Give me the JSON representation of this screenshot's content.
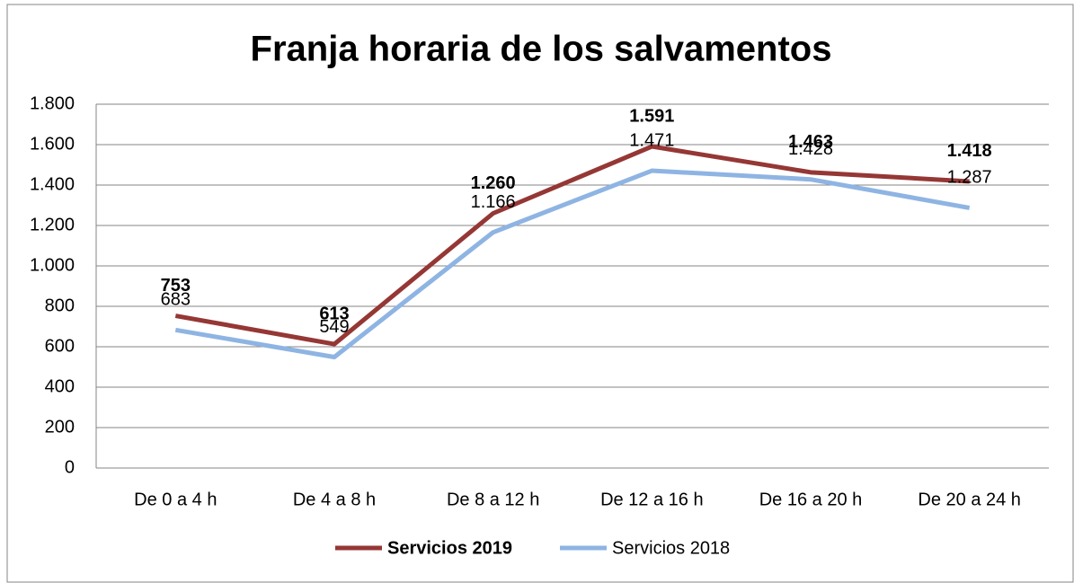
{
  "chart_data": {
    "type": "line",
    "title": "Franja horaria de los salvamentos",
    "categories": [
      "De 0 a 4 h",
      "De 4 a 8 h",
      "De 8 a 12 h",
      "De 12 a 16 h",
      "De 16 a 20 h",
      "De 20 a 24 h"
    ],
    "series": [
      {
        "name": "Servicios 2019",
        "color": "#953735",
        "values": [
          753,
          613,
          1260,
          1591,
          1463,
          1418
        ],
        "value_labels": [
          "753",
          "613",
          "1.260",
          "1.591",
          "1.463",
          "1.418"
        ]
      },
      {
        "name": "Servicios 2018",
        "color": "#8eb4e3",
        "values": [
          683,
          549,
          1166,
          1471,
          1428,
          1287
        ],
        "value_labels": [
          "683",
          "549",
          "1.166",
          "1.471",
          "1.428",
          "1.287"
        ]
      }
    ],
    "ylim": [
      0,
      1800
    ],
    "yticks": [
      0,
      200,
      400,
      600,
      800,
      {
        "value": 1000,
        "label": "1.000"
      },
      {
        "value": 1200,
        "label": "1.200"
      },
      {
        "value": 1400,
        "label": "1.400"
      },
      {
        "value": 1600,
        "label": "1.600"
      },
      {
        "value": 1800,
        "label": "1.800"
      }
    ],
    "grid": true,
    "legend": "bottom"
  }
}
